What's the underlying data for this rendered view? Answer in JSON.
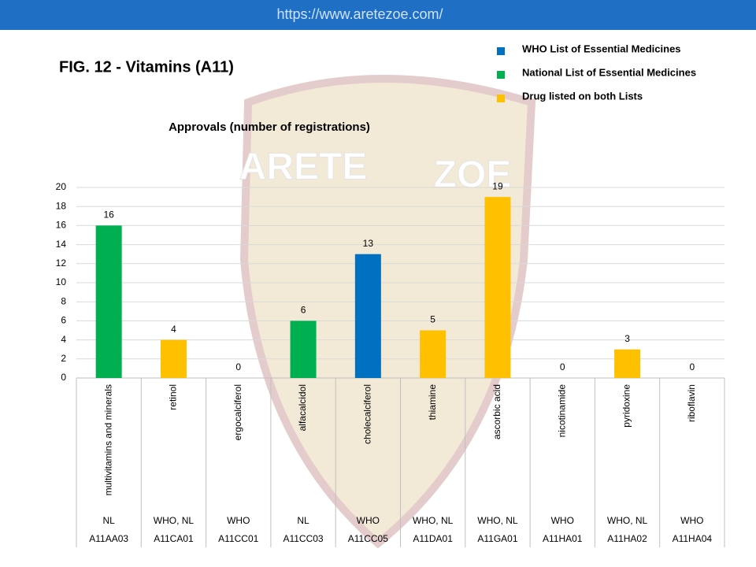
{
  "header": {
    "url": "https://www.aretezoe.com/"
  },
  "watermark": [
    "ARETE",
    "ZOE"
  ],
  "chart_data": {
    "type": "bar",
    "title": "FIG. 12 - Vitamins (A11)",
    "subtitle": "Approvals (number of registrations)",
    "categories": [
      "multivitamins and minerals",
      "retinol",
      "ergocalciferol",
      "alfacalcidol",
      "cholecalciferol",
      "thiamine",
      "ascorbic acid",
      "nicotinamide",
      "pyridoxine",
      "riboflavin"
    ],
    "lists": [
      "NL",
      "WHO, NL",
      "WHO",
      "NL",
      "WHO",
      "WHO, NL",
      "WHO, NL",
      "WHO",
      "WHO, NL",
      "WHO"
    ],
    "codes": [
      "A11AA03",
      "A11CA01",
      "A11CC01",
      "A11CC03",
      "A11CC05",
      "A11DA01",
      "A11GA01",
      "A11HA01",
      "A11HA02",
      "A11HA04"
    ],
    "series": [
      {
        "name": "WHO List of Essential Medicines",
        "color": "#0070c0",
        "values": [
          null,
          null,
          0,
          null,
          13,
          null,
          null,
          0,
          null,
          0
        ]
      },
      {
        "name": "National List of Essential Medicines",
        "color": "#00b050",
        "values": [
          16,
          null,
          null,
          6,
          null,
          null,
          null,
          null,
          null,
          null
        ]
      },
      {
        "name": "Drug listed on both Lists",
        "color": "#ffc000",
        "values": [
          null,
          4,
          null,
          null,
          null,
          5,
          19,
          null,
          3,
          null
        ]
      }
    ],
    "ylim": [
      0,
      20
    ],
    "yticks": [
      0,
      2,
      4,
      6,
      8,
      10,
      12,
      14,
      16,
      18,
      20
    ],
    "grid": true
  }
}
